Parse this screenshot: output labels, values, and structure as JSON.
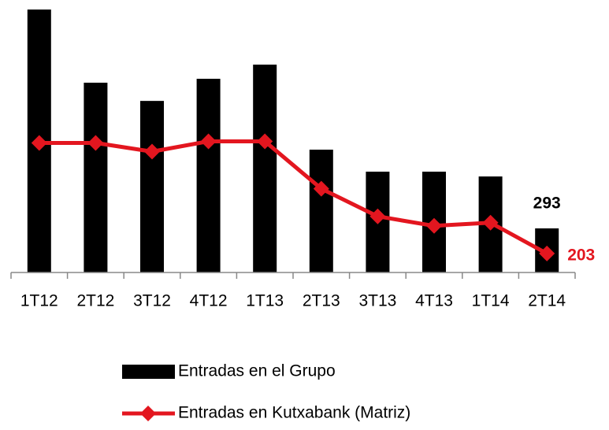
{
  "chart_data": {
    "type": "bar-line",
    "categories": [
      "1T12",
      "2T12",
      "3T12",
      "4T12",
      "1T13",
      "2T13",
      "3T13",
      "4T13",
      "1T14",
      "2T14"
    ],
    "series": [
      {
        "name": "Entradas en el Grupo",
        "type": "bar",
        "color": "#000000",
        "values": [
          1747,
          1261,
          1140,
          1287,
          1381,
          816,
          670,
          670,
          638,
          293
        ]
      },
      {
        "name": "Entradas en Kutxabank (Matriz)",
        "type": "line",
        "axis": "y2",
        "color": "#e3161f",
        "values": [
          1387,
          1387,
          1294,
          1404,
          1404,
          897,
          601,
          499,
          533,
          203
        ]
      }
    ],
    "ylim": [
      0,
      1800
    ],
    "y2lim": [
      0,
      2900
    ]
  }
}
